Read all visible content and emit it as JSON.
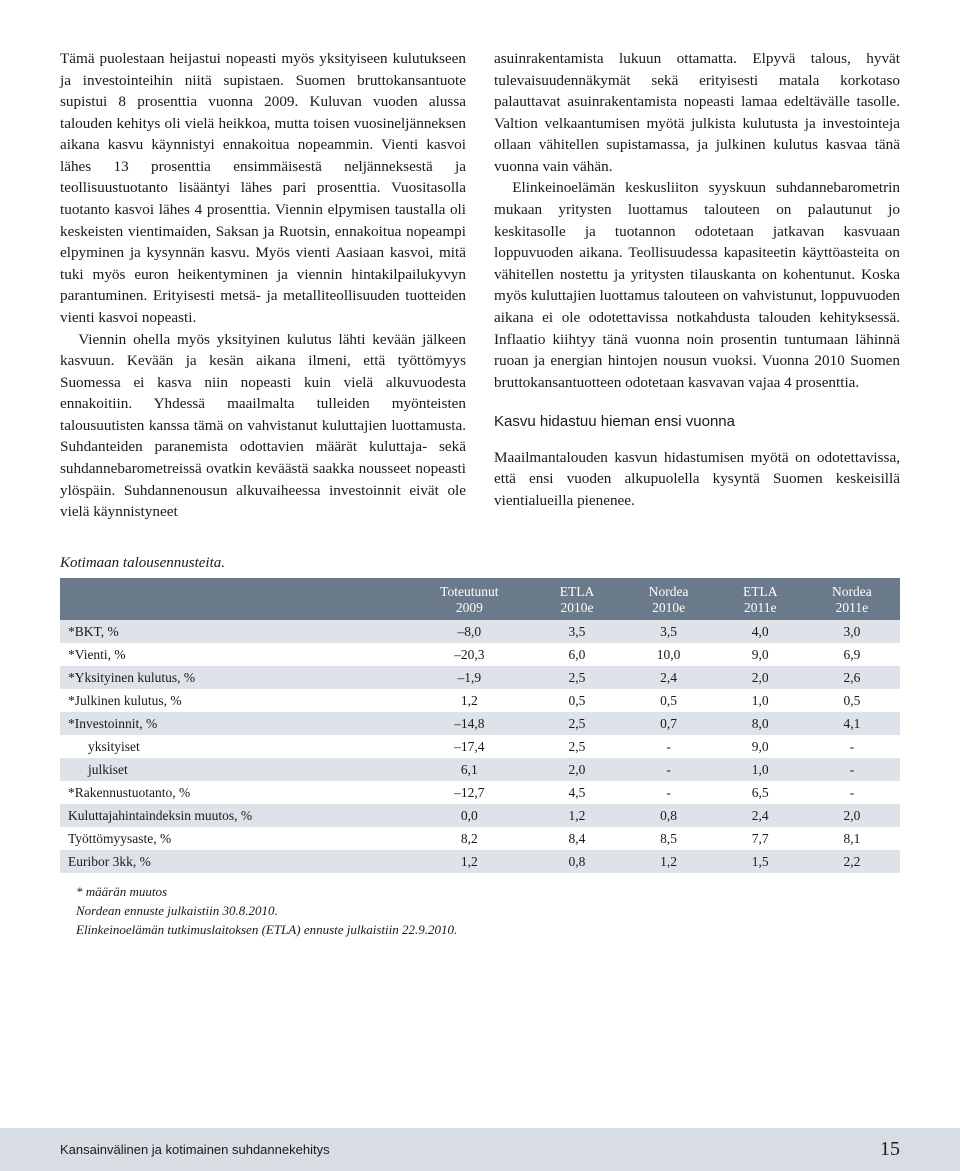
{
  "left": {
    "p1": "Tämä puolestaan heijastui nopeasti myös yksityiseen kulutukseen ja investointeihin niitä supistaen. Suomen bruttokansantuote supistui 8 prosenttia vuonna 2009.",
    "p2": "Kuluvan vuoden alussa talouden kehitys oli vielä heikkoa, mutta toisen vuosineljänneksen aikana kasvu käynnistyi ennakoitua nopeammin. Vienti kasvoi lähes 13 prosenttia ensimmäisestä neljänneksestä ja teollisuustuotanto lisääntyi lähes pari prosenttia. Vuositasolla tuotanto kasvoi lähes 4 prosenttia. Viennin elpymisen taustalla oli keskeisten vientimaiden, Saksan ja Ruotsin, ennakoitua nopeampi elpyminen ja kysynnän kasvu. Myös vienti Aasiaan kasvoi, mitä tuki myös euron heikentyminen ja viennin hintakilpailukyvyn parantuminen. Erityisesti metsä- ja metalliteollisuuden tuotteiden vienti kasvoi nopeasti.",
    "p3": "Viennin ohella myös yksityinen kulutus lähti kevään jälkeen kasvuun. Kevään ja kesän aikana ilmeni, että työttömyys Suomessa ei kasva niin nopeasti kuin vielä alkuvuodesta ennakoitiin. Yhdessä maailmalta tulleiden myönteisten talousuutisten kanssa tämä on vahvistanut kuluttajien luottamusta. Suhdanteiden paranemista odottavien määrät kuluttaja- sekä suhdannebarometreissä ovatkin keväästä saakka nousseet nopeasti ylöspäin. Suhdannenousun alkuvaiheessa investoinnit eivät ole vielä käynnistyneet"
  },
  "right": {
    "p1": "asuinrakentamista lukuun ottamatta. Elpyvä talous, hyvät tulevaisuudennäkymät sekä erityisesti matala korkotaso palauttavat asuinrakentamista nopeasti lamaa edeltävälle tasolle. Valtion velkaantumisen myötä julkista kulutusta ja investointeja ollaan vähitellen supistamassa, ja julkinen kulutus kasvaa tänä vuonna vain vähän.",
    "p2": "Elinkeinoelämän keskusliiton syyskuun suhdannebarometrin mukaan yritysten luottamus talouteen on palautunut jo keskitasolle ja tuotannon odotetaan jatkavan kasvuaan loppuvuoden aikana. Teollisuudessa kapasiteetin käyttöasteita on vähitellen nostettu ja yritysten tilauskanta on kohentunut. Koska myös kuluttajien luottamus talouteen on vahvistunut, loppuvuoden aikana ei ole odotettavissa notkahdusta talouden kehityksessä. Inflaatio kiihtyy tänä vuonna noin prosentin tuntumaan lähinnä ruoan ja energian hintojen nousun vuoksi. Vuonna 2010 Suomen bruttokansantuotteen odotetaan kasvavan vajaa 4 prosenttia.",
    "subhead": "Kasvu hidastuu hieman ensi vuonna",
    "p3": "Maailmantalouden kasvun hidastumisen myötä on odotettavissa, että ensi vuoden alkupuolella kysyntä Suomen keskeisillä vientialueilla pienenee."
  },
  "table": {
    "title": "Kotimaan talousennusteita.",
    "headers": {
      "blank": "",
      "c1a": "Toteutunut",
      "c1b": "2009",
      "c2a": "ETLA",
      "c2b": "2010e",
      "c3a": "Nordea",
      "c3b": "2010e",
      "c4a": "ETLA",
      "c4b": "2011e",
      "c5a": "Nordea",
      "c5b": "2011e"
    },
    "rows": [
      {
        "label": "*BKT, %",
        "v": [
          "–8,0",
          "3,5",
          "3,5",
          "4,0",
          "3,0"
        ],
        "stripe": true
      },
      {
        "label": "*Vienti, %",
        "v": [
          "–20,3",
          "6,0",
          "10,0",
          "9,0",
          "6,9"
        ],
        "stripe": false
      },
      {
        "label": "*Yksityinen kulutus, %",
        "v": [
          "–1,9",
          "2,5",
          "2,4",
          "2,0",
          "2,6"
        ],
        "stripe": true
      },
      {
        "label": "*Julkinen kulutus, %",
        "v": [
          "1,2",
          "0,5",
          "0,5",
          "1,0",
          "0,5"
        ],
        "stripe": false
      },
      {
        "label": "*Investoinnit, %",
        "v": [
          "–14,8",
          "2,5",
          "0,7",
          "8,0",
          "4,1"
        ],
        "stripe": true
      },
      {
        "label": "yksityiset",
        "v": [
          "–17,4",
          "2,5",
          "-",
          "9,0",
          "-"
        ],
        "stripe": false,
        "sub": true
      },
      {
        "label": "julkiset",
        "v": [
          "6,1",
          "2,0",
          "-",
          "1,0",
          "-"
        ],
        "stripe": true,
        "sub": true
      },
      {
        "label": "*Rakennustuotanto, %",
        "v": [
          "–12,7",
          "4,5",
          "-",
          "6,5",
          "-"
        ],
        "stripe": false
      },
      {
        "label": "Kuluttajahintaindeksin muutos, %",
        "v": [
          "0,0",
          "1,2",
          "0,8",
          "2,4",
          "2,0"
        ],
        "stripe": true
      },
      {
        "label": "Työttömyysaste, %",
        "v": [
          "8,2",
          "8,4",
          "8,5",
          "7,7",
          "8,1"
        ],
        "stripe": false
      },
      {
        "label": "Euribor 3kk, %",
        "v": [
          "1,2",
          "0,8",
          "1,2",
          "1,5",
          "2,2"
        ],
        "stripe": true
      }
    ],
    "footnotes": [
      "* määrän muutos",
      "Nordean ennuste julkaistiin 30.8.2010.",
      "Elinkeinoelämän tutkimuslaitoksen (ETLA) ennuste julkaistiin 22.9.2010."
    ]
  },
  "footer": {
    "section": "Kansainvälinen ja kotimainen suhdannekehitys",
    "page": "15"
  }
}
